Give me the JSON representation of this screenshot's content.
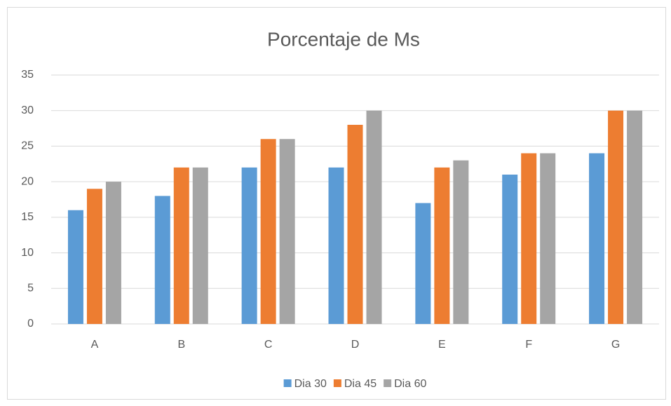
{
  "chart_data": {
    "type": "bar",
    "title": "Porcentaje de Ms",
    "categories": [
      "A",
      "B",
      "C",
      "D",
      "E",
      "F",
      "G"
    ],
    "series": [
      {
        "name": "Dia 30",
        "color": "#5b9bd5",
        "values": [
          16,
          18,
          22,
          22,
          17,
          21,
          24
        ]
      },
      {
        "name": "Dia 45",
        "color": "#ed7d31",
        "values": [
          19,
          22,
          26,
          28,
          22,
          24,
          30
        ]
      },
      {
        "name": "Dia 60",
        "color": "#a5a5a5",
        "values": [
          20,
          22,
          26,
          30,
          23,
          24,
          30
        ]
      }
    ],
    "ylim": [
      0,
      35
    ],
    "yticks": [
      0,
      5,
      10,
      15,
      20,
      25,
      30,
      35
    ],
    "grid": true,
    "legend": "bottom"
  }
}
